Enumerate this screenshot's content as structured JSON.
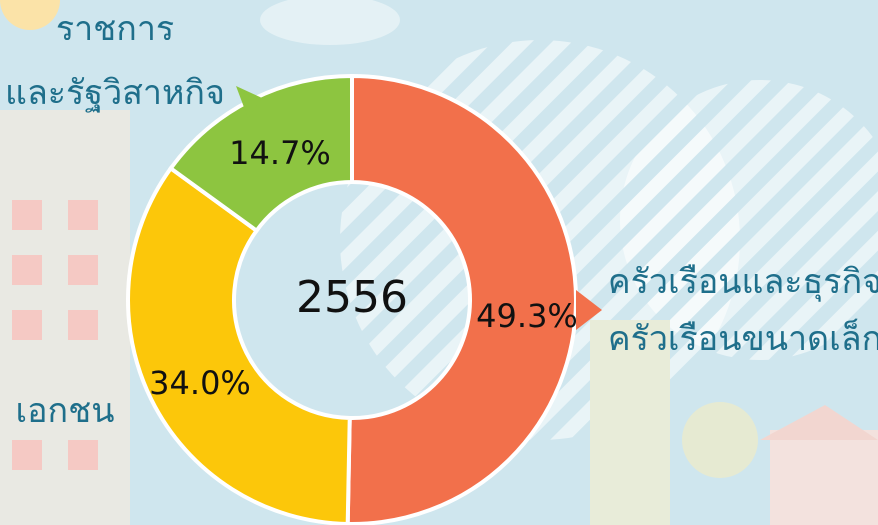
{
  "chart_data": {
    "type": "donut",
    "center_label": "2556",
    "categories": [
      "ครัวเรือนและธุรกิจ\nครัวเรือนขนาดเล็ก",
      "เอกชน",
      "ราชการ\nและรัฐวิสาหกิจ"
    ],
    "values": [
      49.3,
      34.0,
      14.7
    ],
    "value_labels": [
      "49.3%",
      "34.0%",
      "14.7%"
    ],
    "colors": [
      "#f2704b",
      "#fcc70a",
      "#8dc540"
    ]
  }
}
